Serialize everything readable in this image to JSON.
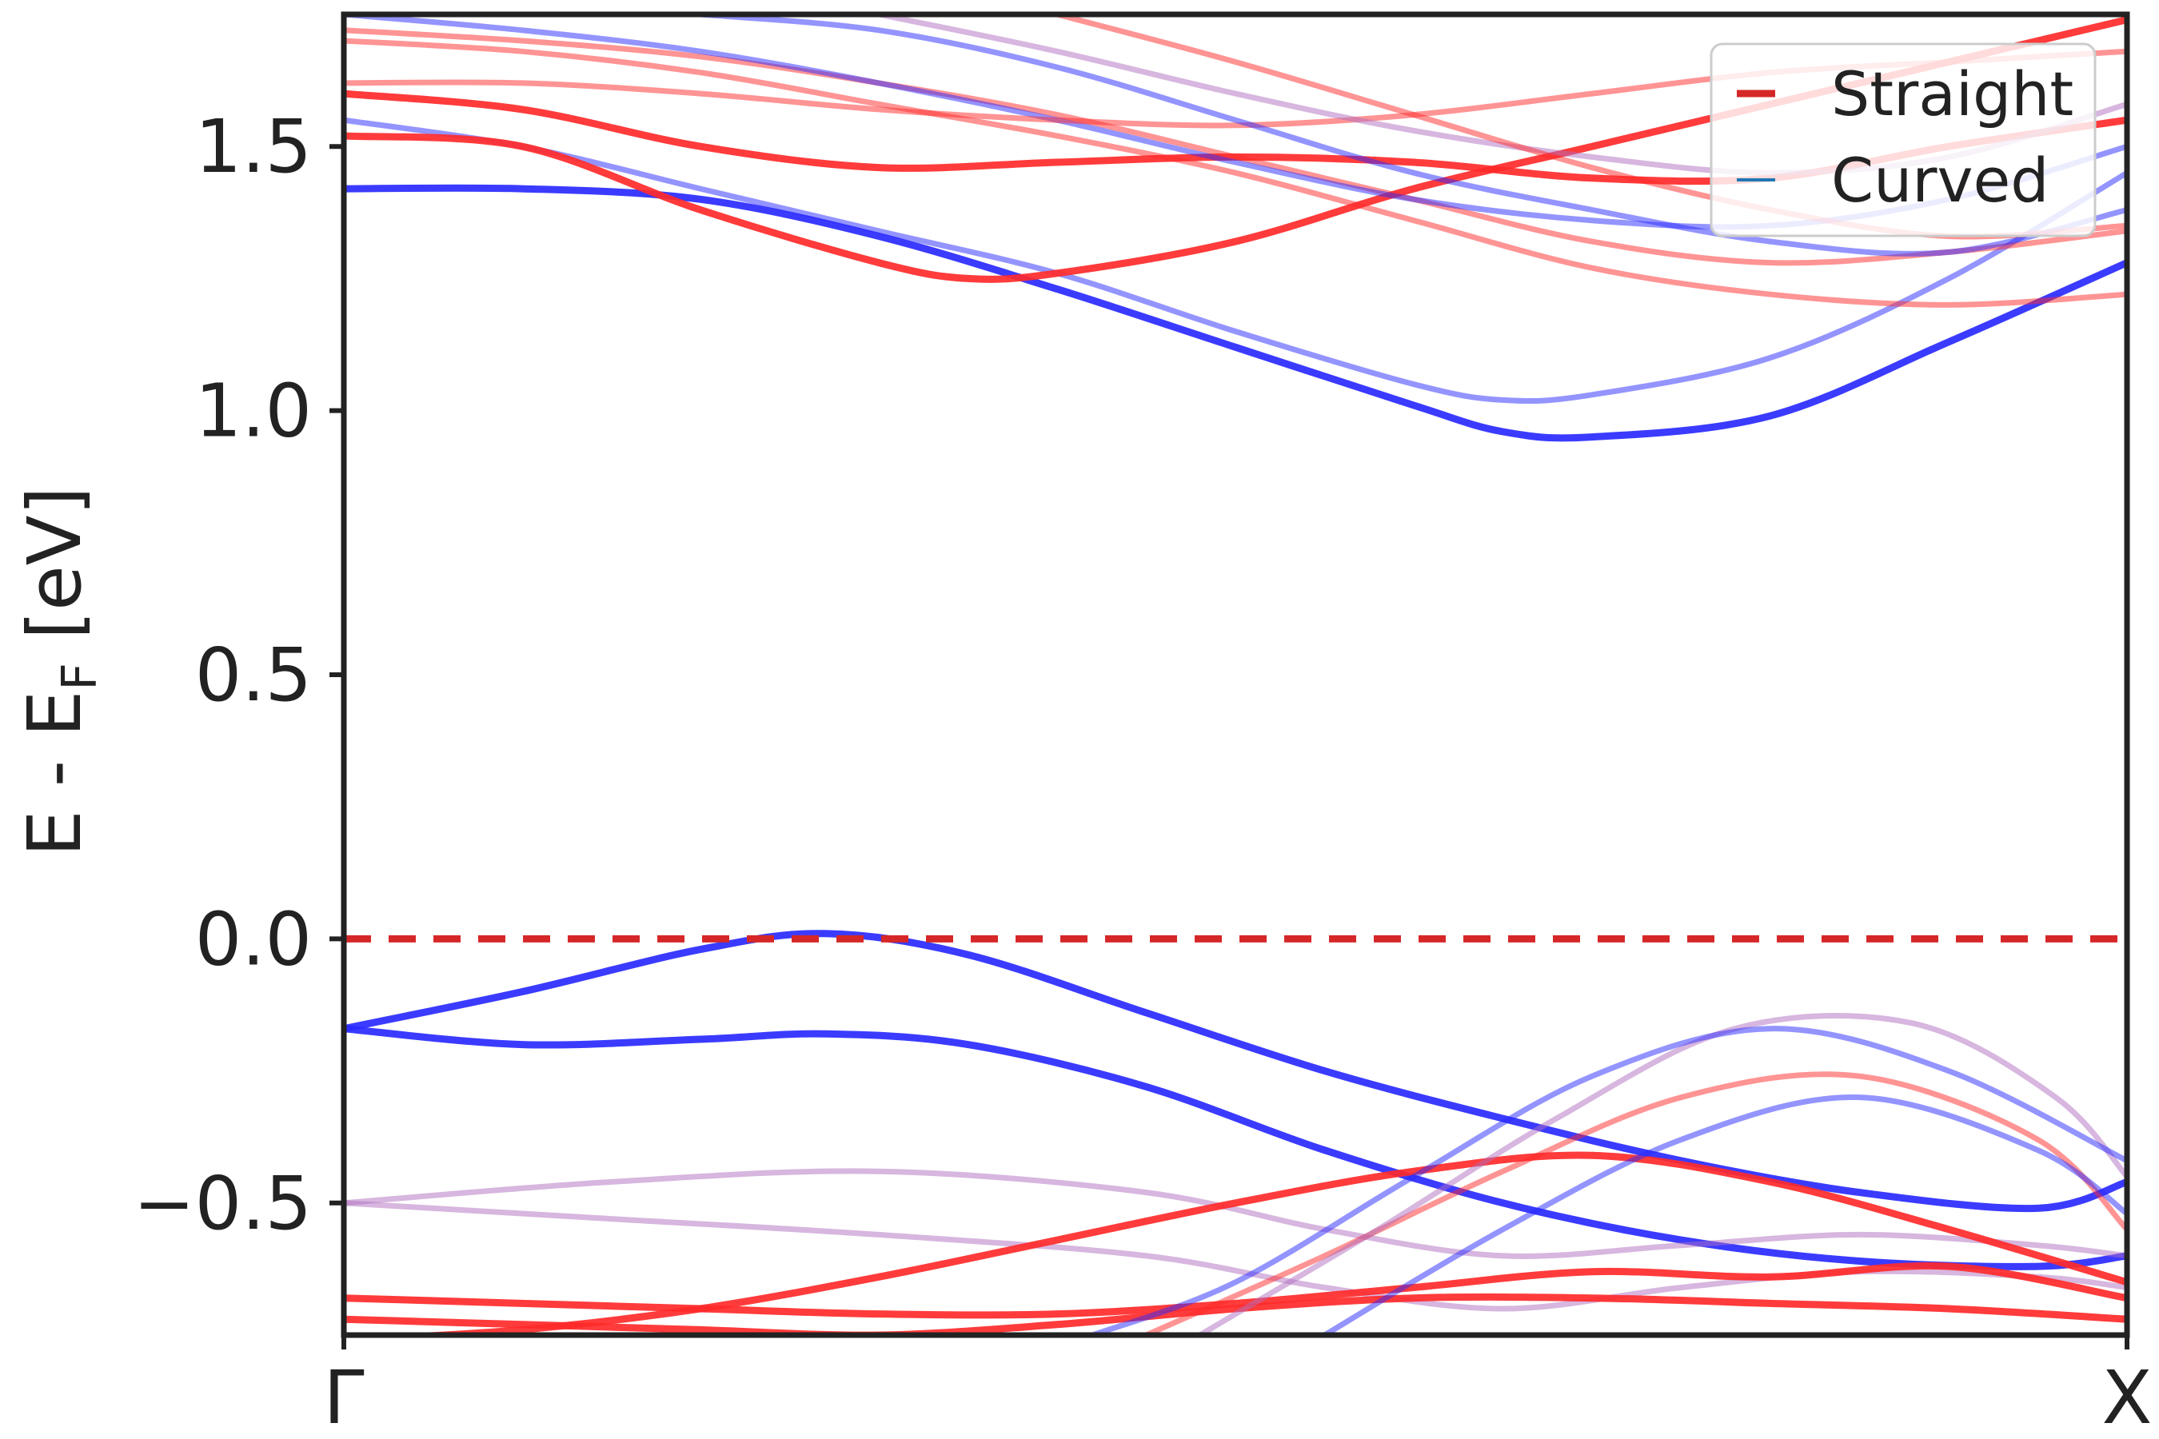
{
  "chart_data": {
    "type": "line",
    "title": "",
    "xlabel": "",
    "ylabel": "E - E",
    "ylabel_subscript": "F",
    "ylabel_suffix": " [eV]",
    "xlim": [
      0,
      1
    ],
    "ylim": [
      -0.75,
      1.75
    ],
    "x_ticks": [
      {
        "value": 0,
        "label": "Γ"
      },
      {
        "value": 1,
        "label": "X"
      }
    ],
    "y_ticks": [
      {
        "value": -0.5,
        "label": "−0.5"
      },
      {
        "value": 0.0,
        "label": "0.0"
      },
      {
        "value": 0.5,
        "label": "0.5"
      },
      {
        "value": 1.0,
        "label": "1.0"
      },
      {
        "value": 1.5,
        "label": "1.5"
      }
    ],
    "grid": false,
    "legend": {
      "placement": "top-right",
      "entries": [
        {
          "label": "Straight",
          "color": "#d62728"
        },
        {
          "label": "Curved",
          "color": "#1f77b4"
        }
      ]
    },
    "fermi_level": {
      "y": 0.0,
      "color": "#d62728",
      "style": "dashed"
    },
    "colors": {
      "straight_bands": "#ff2a2a",
      "curved_bands": "#2a2aff",
      "mixed_bands": "#b06ec0"
    },
    "series": [
      {
        "group": "curved",
        "emphasis": "strong",
        "x": [
          0,
          0.1,
          0.2,
          0.27,
          0.35,
          0.45,
          0.55,
          0.65,
          0.75,
          0.85,
          0.95,
          1.0
        ],
        "y": [
          -0.17,
          -0.1,
          -0.02,
          0.01,
          -0.03,
          -0.14,
          -0.25,
          -0.34,
          -0.42,
          -0.48,
          -0.51,
          -0.46
        ]
      },
      {
        "group": "curved",
        "emphasis": "strong",
        "x": [
          0,
          0.1,
          0.2,
          0.27,
          0.35,
          0.45,
          0.55,
          0.65,
          0.75,
          0.85,
          0.95,
          1.0
        ],
        "y": [
          -0.17,
          -0.2,
          -0.19,
          -0.18,
          -0.2,
          -0.28,
          -0.4,
          -0.5,
          -0.57,
          -0.61,
          -0.62,
          -0.6
        ]
      },
      {
        "group": "mixed",
        "emphasis": "weak",
        "x": [
          0,
          0.15,
          0.3,
          0.45,
          0.55,
          0.65,
          0.75,
          0.85,
          0.95,
          1.0
        ],
        "y": [
          -0.5,
          -0.46,
          -0.44,
          -0.48,
          -0.55,
          -0.6,
          -0.58,
          -0.56,
          -0.58,
          -0.6
        ]
      },
      {
        "group": "mixed",
        "emphasis": "weak",
        "x": [
          0,
          0.15,
          0.3,
          0.45,
          0.55,
          0.65,
          0.75,
          0.85,
          0.95,
          1.0
        ],
        "y": [
          -0.5,
          -0.53,
          -0.56,
          -0.6,
          -0.66,
          -0.7,
          -0.66,
          -0.63,
          -0.64,
          -0.66
        ]
      },
      {
        "group": "straight",
        "emphasis": "strong",
        "x": [
          0,
          0.1,
          0.2,
          0.3,
          0.4,
          0.5,
          0.6,
          0.7,
          0.8,
          0.9,
          1.0
        ],
        "y": [
          -0.76,
          -0.74,
          -0.7,
          -0.64,
          -0.57,
          -0.5,
          -0.44,
          -0.41,
          -0.46,
          -0.55,
          -0.65
        ]
      },
      {
        "group": "straight",
        "emphasis": "strong",
        "x": [
          0,
          0.1,
          0.2,
          0.3,
          0.4,
          0.5,
          0.6,
          0.7,
          0.8,
          0.9,
          1.0
        ],
        "y": [
          -0.68,
          -0.69,
          -0.7,
          -0.71,
          -0.71,
          -0.69,
          -0.66,
          -0.63,
          -0.64,
          -0.62,
          -0.68
        ]
      },
      {
        "group": "straight",
        "emphasis": "strong",
        "x": [
          0,
          0.1,
          0.2,
          0.3,
          0.4,
          0.5,
          0.6,
          0.7,
          0.8,
          0.9,
          1.0
        ],
        "y": [
          -0.72,
          -0.73,
          -0.74,
          -0.75,
          -0.73,
          -0.7,
          -0.68,
          -0.68,
          -0.69,
          -0.7,
          -0.72
        ]
      },
      {
        "group": "straight",
        "emphasis": "weak",
        "x": [
          0.45,
          0.55,
          0.65,
          0.75,
          0.85,
          0.95,
          1.0
        ],
        "y": [
          -0.75,
          -0.6,
          -0.44,
          -0.3,
          -0.26,
          -0.38,
          -0.55
        ]
      },
      {
        "group": "mixed",
        "emphasis": "weak",
        "x": [
          0.48,
          0.58,
          0.68,
          0.78,
          0.88,
          0.96,
          1.0
        ],
        "y": [
          -0.75,
          -0.55,
          -0.34,
          -0.17,
          -0.16,
          -0.3,
          -0.45
        ]
      },
      {
        "group": "curved",
        "emphasis": "weak",
        "x": [
          0.42,
          0.5,
          0.6,
          0.7,
          0.8,
          0.9,
          1.0
        ],
        "y": [
          -0.75,
          -0.65,
          -0.45,
          -0.26,
          -0.17,
          -0.25,
          -0.42
        ]
      },
      {
        "group": "curved",
        "emphasis": "weak",
        "x": [
          0.55,
          0.65,
          0.75,
          0.85,
          0.95,
          1.0
        ],
        "y": [
          -0.75,
          -0.55,
          -0.38,
          -0.3,
          -0.4,
          -0.52
        ]
      },
      {
        "group": "curved",
        "emphasis": "strong",
        "x": [
          0,
          0.1,
          0.2,
          0.3,
          0.4,
          0.5,
          0.6,
          0.65,
          0.7,
          0.8,
          0.9,
          1.0
        ],
        "y": [
          1.42,
          1.42,
          1.4,
          1.33,
          1.23,
          1.12,
          1.01,
          0.96,
          0.95,
          0.99,
          1.13,
          1.28
        ]
      },
      {
        "group": "curved",
        "emphasis": "weak",
        "x": [
          0,
          0.1,
          0.2,
          0.3,
          0.4,
          0.5,
          0.6,
          0.65,
          0.7,
          0.8,
          0.9,
          1.0
        ],
        "y": [
          1.55,
          1.5,
          1.42,
          1.34,
          1.26,
          1.15,
          1.05,
          1.02,
          1.03,
          1.1,
          1.25,
          1.45
        ]
      },
      {
        "group": "straight",
        "emphasis": "strong",
        "x": [
          0,
          0.1,
          0.2,
          0.3,
          0.35,
          0.4,
          0.5,
          0.6,
          0.7,
          0.8,
          0.9,
          1.0
        ],
        "y": [
          1.52,
          1.5,
          1.38,
          1.28,
          1.25,
          1.26,
          1.32,
          1.42,
          1.5,
          1.58,
          1.66,
          1.74
        ]
      },
      {
        "group": "straight",
        "emphasis": "strong",
        "x": [
          0,
          0.1,
          0.2,
          0.3,
          0.4,
          0.5,
          0.6,
          0.7,
          0.8,
          0.9,
          1.0
        ],
        "y": [
          1.6,
          1.57,
          1.5,
          1.46,
          1.47,
          1.48,
          1.47,
          1.44,
          1.44,
          1.5,
          1.55
        ]
      },
      {
        "group": "straight",
        "emphasis": "weak",
        "x": [
          0,
          0.1,
          0.2,
          0.3,
          0.4,
          0.5,
          0.6,
          0.7,
          0.8,
          0.9,
          1.0
        ],
        "y": [
          1.7,
          1.68,
          1.64,
          1.58,
          1.52,
          1.45,
          1.36,
          1.27,
          1.22,
          1.2,
          1.22
        ]
      },
      {
        "group": "straight",
        "emphasis": "weak",
        "x": [
          0,
          0.1,
          0.2,
          0.3,
          0.4,
          0.5,
          0.6,
          0.7,
          0.8,
          0.9,
          1.0
        ],
        "y": [
          1.72,
          1.7,
          1.67,
          1.62,
          1.56,
          1.48,
          1.4,
          1.32,
          1.28,
          1.3,
          1.34
        ]
      },
      {
        "group": "curved",
        "emphasis": "weak",
        "x": [
          0,
          0.1,
          0.2,
          0.3,
          0.4,
          0.5,
          0.6,
          0.7,
          0.8,
          0.9,
          1.0
        ],
        "y": [
          1.75,
          1.72,
          1.68,
          1.62,
          1.55,
          1.47,
          1.4,
          1.36,
          1.35,
          1.4,
          1.5
        ]
      },
      {
        "group": "straight",
        "emphasis": "weak",
        "x": [
          0,
          0.1,
          0.2,
          0.3,
          0.4,
          0.5,
          0.6,
          0.7,
          0.8,
          0.9,
          1.0
        ],
        "y": [
          1.62,
          1.62,
          1.6,
          1.57,
          1.55,
          1.54,
          1.56,
          1.6,
          1.64,
          1.66,
          1.68
        ]
      },
      {
        "group": "mixed",
        "emphasis": "weak",
        "x": [
          0.3,
          0.4,
          0.5,
          0.6,
          0.7,
          0.8,
          0.9,
          1.0
        ],
        "y": [
          1.75,
          1.68,
          1.6,
          1.53,
          1.48,
          1.45,
          1.48,
          1.58
        ]
      },
      {
        "group": "curved",
        "emphasis": "weak",
        "x": [
          0.2,
          0.3,
          0.4,
          0.5,
          0.6,
          0.7,
          0.8,
          0.9,
          1.0
        ],
        "y": [
          1.75,
          1.72,
          1.65,
          1.55,
          1.45,
          1.38,
          1.32,
          1.3,
          1.38
        ]
      },
      {
        "group": "straight",
        "emphasis": "weak",
        "x": [
          0.4,
          0.5,
          0.6,
          0.7,
          0.8,
          0.9,
          1.0
        ],
        "y": [
          1.75,
          1.66,
          1.56,
          1.46,
          1.38,
          1.33,
          1.35
        ]
      }
    ]
  }
}
